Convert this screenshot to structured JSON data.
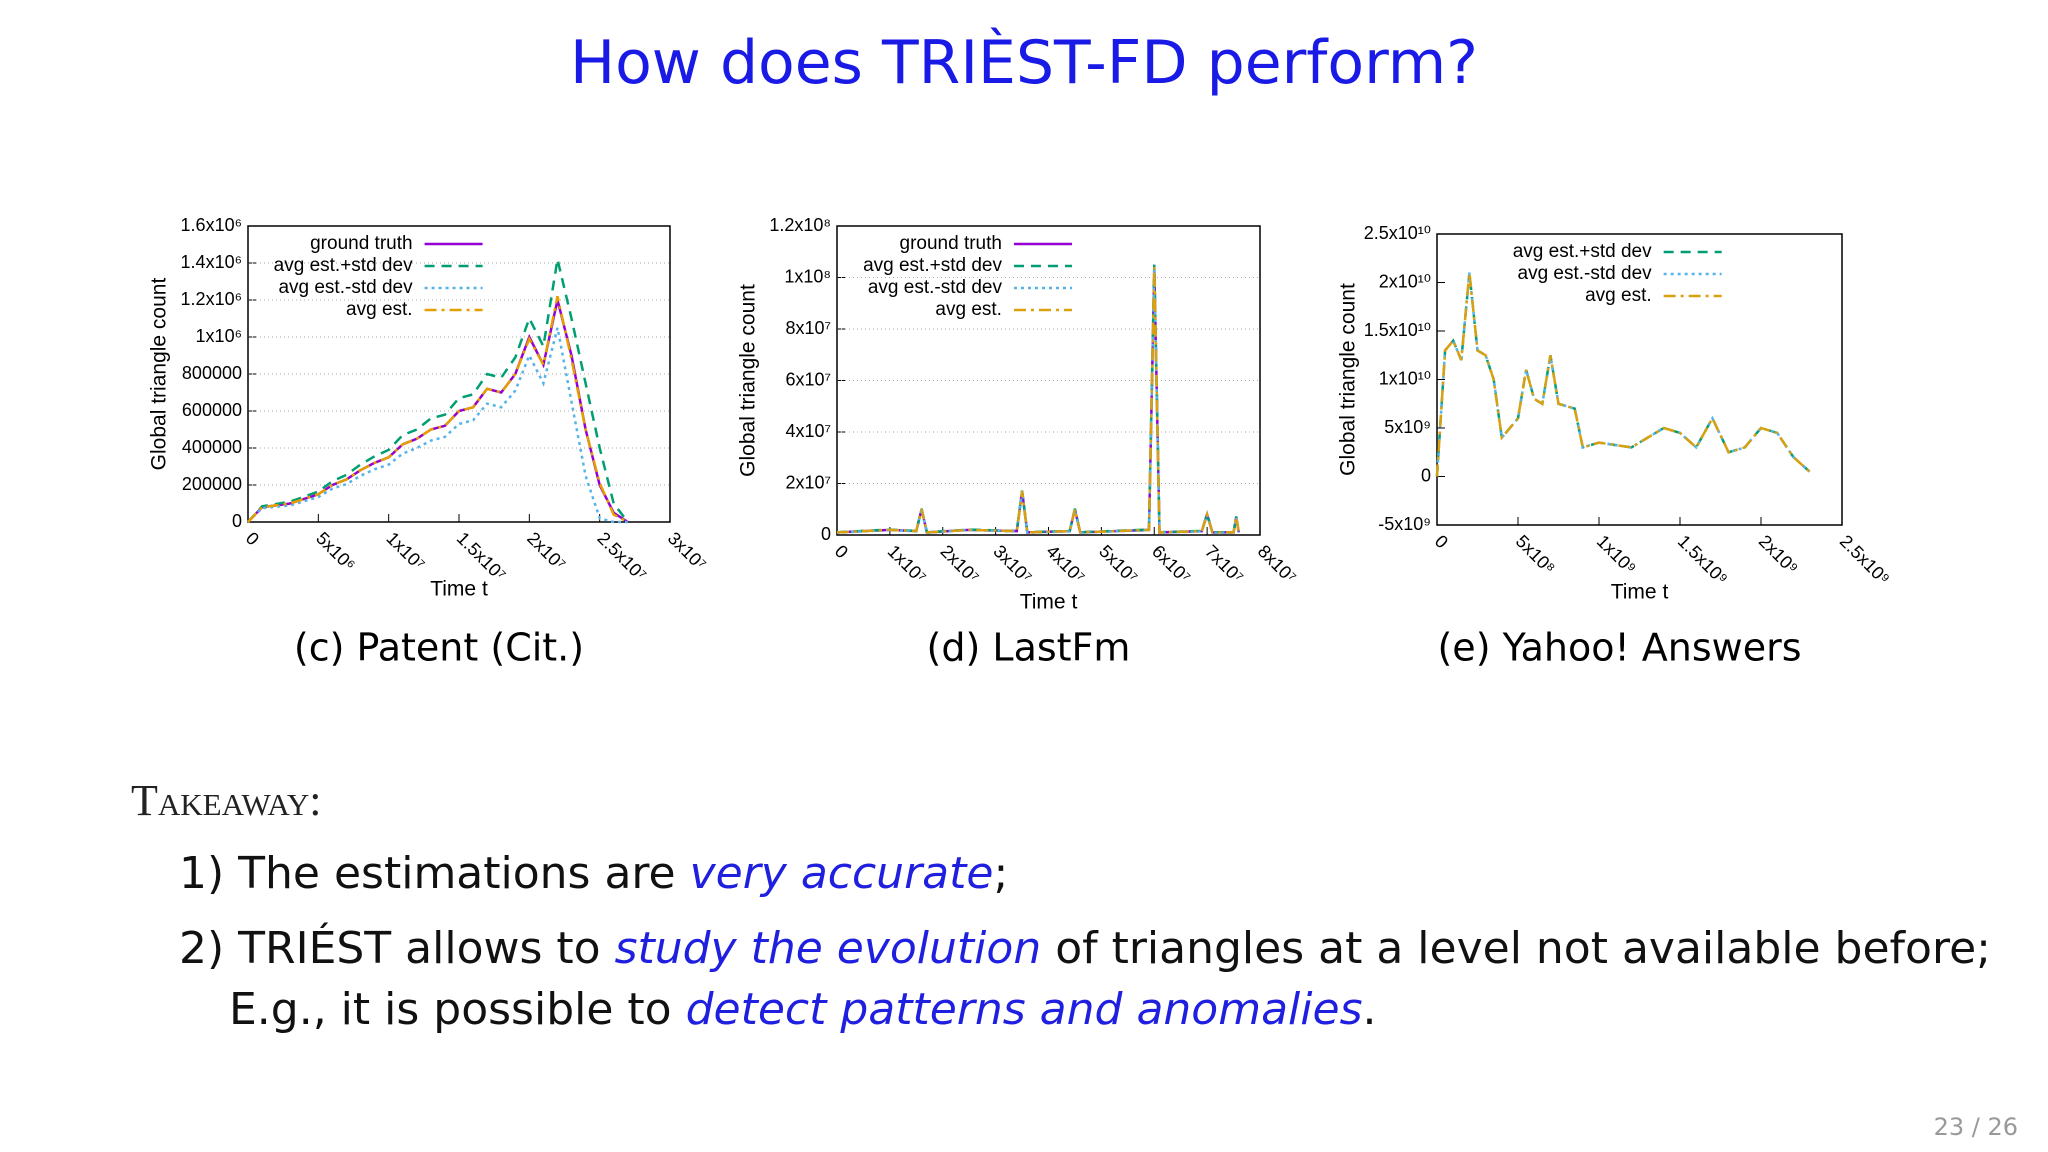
{
  "slide_title": "How does TRIÈST-FD perform?",
  "chart_data": [
    {
      "type": "line",
      "caption": "(c) Patent (Cit.)",
      "ylabel": "Global triangle count",
      "xlabel": "Time t",
      "grid": true,
      "legend": "upper left",
      "xlim": [
        0,
        30000000.0
      ],
      "ylim": [
        0,
        1600000
      ],
      "xticks": [
        0,
        {
          "value": 5000000.0,
          "label": "5x10⁶"
        },
        {
          "value": 10000000.0,
          "label": "1x10⁷"
        },
        {
          "value": 15000000.0,
          "label": "1.5x10⁷"
        },
        {
          "value": 20000000.0,
          "label": "2x10⁷"
        },
        {
          "value": 25000000.0,
          "label": "2.5x10⁷"
        },
        {
          "value": 30000000.0,
          "label": "3x10⁷"
        }
      ],
      "yticks": [
        0,
        200000,
        400000,
        600000,
        800000,
        {
          "value": 1000000,
          "label": "1x10⁶"
        },
        {
          "value": 1200000,
          "label": "1.2x10⁶"
        },
        {
          "value": 1400000,
          "label": "1.4x10⁶"
        },
        {
          "value": 1600000,
          "label": "1.6x10⁶"
        }
      ],
      "x": [
        0,
        1000000.0,
        3000000.0,
        5000000.0,
        6000000.0,
        7000000.0,
        8000000.0,
        9000000.0,
        10000000.0,
        11000000.0,
        12000000.0,
        13000000.0,
        14000000.0,
        15000000.0,
        16000000.0,
        17000000.0,
        18000000.0,
        19000000.0,
        20000000.0,
        21000000.0,
        22000000.0,
        23000000.0,
        24000000.0,
        25000000.0,
        26000000.0,
        27000000.0
      ],
      "series": [
        {
          "name": "ground truth",
          "color": "#9400d3",
          "dash": "solid",
          "values": [
            0,
            80000,
            100000,
            150000,
            200000,
            230000,
            280000,
            320000,
            350000,
            420000,
            450000,
            500000,
            520000,
            600000,
            620000,
            720000,
            700000,
            800000,
            1000000,
            850000,
            1200000,
            900000,
            500000,
            200000,
            50000,
            0
          ]
        },
        {
          "name": "avg est.+std dev",
          "color": "#009e73",
          "dash": "dashed",
          "values": [
            0,
            85000,
            110000,
            165000,
            220000,
            255000,
            310000,
            355000,
            390000,
            470000,
            500000,
            560000,
            580000,
            670000,
            690000,
            800000,
            780000,
            890000,
            1100000,
            950000,
            1420000,
            1100000,
            750000,
            400000,
            100000,
            0
          ]
        },
        {
          "name": "avg est.-std dev",
          "color": "#56b4e9",
          "dash": "dotted",
          "values": [
            0,
            75000,
            90000,
            135000,
            180000,
            205000,
            250000,
            285000,
            310000,
            370000,
            400000,
            440000,
            460000,
            530000,
            550000,
            640000,
            620000,
            710000,
            900000,
            750000,
            1050000,
            650000,
            250000,
            20000,
            0,
            0
          ]
        },
        {
          "name": "avg est.",
          "color": "#e69f00",
          "dash": "dashdot",
          "values": [
            0,
            80000,
            100000,
            150000,
            200000,
            230000,
            280000,
            320000,
            350000,
            420000,
            450000,
            500000,
            520000,
            600000,
            620000,
            720000,
            700000,
            800000,
            990000,
            850000,
            1220000,
            880000,
            500000,
            210000,
            40000,
            0
          ]
        }
      ]
    },
    {
      "type": "line",
      "caption": "(d) LastFm",
      "ylabel": "Global triangle count",
      "xlabel": "Time t",
      "grid": true,
      "legend": "upper left",
      "xlim": [
        0,
        80000000.0
      ],
      "ylim": [
        0,
        120000000.0
      ],
      "xticks": [
        0,
        {
          "value": 10000000.0,
          "label": "1x10⁷"
        },
        {
          "value": 20000000.0,
          "label": "2x10⁷"
        },
        {
          "value": 30000000.0,
          "label": "3x10⁷"
        },
        {
          "value": 40000000.0,
          "label": "4x10⁷"
        },
        {
          "value": 50000000.0,
          "label": "5x10⁷"
        },
        {
          "value": 60000000.0,
          "label": "6x10⁷"
        },
        {
          "value": 70000000.0,
          "label": "7x10⁷"
        },
        {
          "value": 80000000.0,
          "label": "8x10⁷"
        }
      ],
      "yticks": [
        0,
        {
          "value": 20000000.0,
          "label": "2x10⁷"
        },
        {
          "value": 40000000.0,
          "label": "4x10⁷"
        },
        {
          "value": 60000000.0,
          "label": "6x10⁷"
        },
        {
          "value": 80000000.0,
          "label": "8x10⁷"
        },
        {
          "value": 100000000.0,
          "label": "1x10⁸"
        },
        {
          "value": 120000000.0,
          "label": "1.2x10⁸"
        }
      ],
      "x": [
        0,
        10000000.0,
        15000000.0,
        16000000.0,
        17000000.0,
        25000000.0,
        34000000.0,
        35000000.0,
        36000000.0,
        44000000.0,
        45000000.0,
        46000000.0,
        59000000.0,
        60000000.0,
        61000000.0,
        69000000.0,
        70000000.0,
        71000000.0,
        75000000.0,
        75500000.0,
        76000000.0
      ],
      "series": [
        {
          "name": "ground truth",
          "color": "#9400d3",
          "dash": "solid",
          "values": [
            1000000.0,
            2000000.0,
            1500000.0,
            10000000.0,
            1000000.0,
            2000000.0,
            1500000.0,
            17000000.0,
            1000000.0,
            1500000.0,
            10000000.0,
            1000000.0,
            2000000.0,
            104000000.0,
            1000000.0,
            1500000.0,
            8000000.0,
            1000000.0,
            1000000.0,
            7000000.0,
            1000000.0
          ]
        },
        {
          "name": "avg est.+std dev",
          "color": "#009e73",
          "dash": "dashed",
          "values": [
            1100000.0,
            2100000.0,
            1600000.0,
            10200000.0,
            1100000.0,
            2100000.0,
            1600000.0,
            17200000.0,
            1100000.0,
            1600000.0,
            10200000.0,
            1100000.0,
            2100000.0,
            105000000.0,
            1100000.0,
            1600000.0,
            8200000.0,
            1100000.0,
            1100000.0,
            7200000.0,
            1100000.0
          ]
        },
        {
          "name": "avg est.-std dev",
          "color": "#56b4e9",
          "dash": "dotted",
          "values": [
            900000.0,
            1900000.0,
            1400000.0,
            9800000.0,
            900000.0,
            1900000.0,
            1400000.0,
            16800000.0,
            900000.0,
            1400000.0,
            9800000.0,
            900000.0,
            1900000.0,
            103000000.0,
            900000.0,
            1400000.0,
            7800000.0,
            900000.0,
            900000.0,
            6800000.0,
            900000.0
          ]
        },
        {
          "name": "avg est.",
          "color": "#d9a010",
          "dash": "dashdot",
          "values": [
            1000000.0,
            2000000.0,
            1500000.0,
            10000000.0,
            1000000.0,
            2000000.0,
            1500000.0,
            17000000.0,
            1000000.0,
            1500000.0,
            10000000.0,
            1000000.0,
            2000000.0,
            104000000.0,
            1000000.0,
            1500000.0,
            8000000.0,
            1000000.0,
            1000000.0,
            7000000.0,
            1000000.0
          ]
        }
      ]
    },
    {
      "type": "line",
      "caption": "(e) Yahoo! Answers",
      "ylabel": "Global triangle count",
      "xlabel": "Time t",
      "grid": false,
      "legend": "upper center",
      "xlim": [
        0,
        2500000000.0
      ],
      "ylim": [
        -5000000000.0,
        25000000000.0
      ],
      "xticks": [
        0,
        {
          "value": 500000000.0,
          "label": "5x10⁸"
        },
        {
          "value": 1000000000.0,
          "label": "1x10⁹"
        },
        {
          "value": 1500000000.0,
          "label": "1.5x10⁹"
        },
        {
          "value": 2000000000.0,
          "label": "2x10⁹"
        },
        {
          "value": 2500000000.0,
          "label": "2.5x10⁹"
        }
      ],
      "yticks": [
        {
          "value": -5000000000.0,
          "label": "-5x10⁹"
        },
        0,
        {
          "value": 5000000000.0,
          "label": "5x10⁹"
        },
        {
          "value": 10000000000.0,
          "label": "1x10¹⁰"
        },
        {
          "value": 15000000000.0,
          "label": "1.5x10¹⁰"
        },
        {
          "value": 20000000000.0,
          "label": "2x10¹⁰"
        },
        {
          "value": 25000000000.0,
          "label": "2.5x10¹⁰"
        }
      ],
      "x": [
        0,
        50000000.0,
        100000000.0,
        150000000.0,
        200000000.0,
        250000000.0,
        300000000.0,
        350000000.0,
        400000000.0,
        500000000.0,
        550000000.0,
        600000000.0,
        650000000.0,
        700000000.0,
        750000000.0,
        850000000.0,
        900000000.0,
        1000000000.0,
        1200000000.0,
        1400000000.0,
        1500000000.0,
        1600000000.0,
        1700000000.0,
        1800000000.0,
        1900000000.0,
        2000000000.0,
        2100000000.0,
        2200000000.0,
        2300000000.0
      ],
      "series": [
        {
          "name": "avg est.+std dev",
          "color": "#009e73",
          "dash": "dashed",
          "values": [
            0,
            13000000000.0,
            14000000000.0,
            12000000000.0,
            21000000000.0,
            13000000000.0,
            12500000000.0,
            10000000000.0,
            4000000000.0,
            6000000000.0,
            11000000000.0,
            8000000000.0,
            7500000000.0,
            12500000000.0,
            7500000000.0,
            7000000000.0,
            3000000000.0,
            3500000000.0,
            3000000000.0,
            5000000000.0,
            4500000000.0,
            3000000000.0,
            6000000000.0,
            2500000000.0,
            3000000000.0,
            5000000000.0,
            4500000000.0,
            2000000000.0,
            500000000.0
          ]
        },
        {
          "name": "avg est.-std dev",
          "color": "#56b4e9",
          "dash": "dotted",
          "values": [
            0,
            13000000000.0,
            14000000000.0,
            12000000000.0,
            21000000000.0,
            13000000000.0,
            12500000000.0,
            10000000000.0,
            4000000000.0,
            6000000000.0,
            11000000000.0,
            8000000000.0,
            7500000000.0,
            12500000000.0,
            7500000000.0,
            7000000000.0,
            3000000000.0,
            3500000000.0,
            3000000000.0,
            5000000000.0,
            4500000000.0,
            3000000000.0,
            6000000000.0,
            2500000000.0,
            3000000000.0,
            5000000000.0,
            4500000000.0,
            2000000000.0,
            500000000.0
          ]
        },
        {
          "name": "avg est.",
          "color": "#d9a010",
          "dash": "dashdot",
          "values": [
            0,
            13000000000.0,
            14000000000.0,
            12000000000.0,
            21000000000.0,
            13000000000.0,
            12500000000.0,
            10000000000.0,
            4000000000.0,
            6000000000.0,
            11000000000.0,
            8000000000.0,
            7500000000.0,
            12500000000.0,
            7500000000.0,
            7000000000.0,
            3000000000.0,
            3500000000.0,
            3000000000.0,
            5000000000.0,
            4500000000.0,
            3000000000.0,
            6000000000.0,
            2500000000.0,
            3000000000.0,
            5000000000.0,
            4500000000.0,
            2000000000.0,
            500000000.0
          ]
        }
      ]
    }
  ],
  "takeaway": {
    "heading": "Takeaway:",
    "lines": [
      [
        "1) The estimations are ",
        "very accurate",
        ";"
      ],
      [
        "2) TRIÉST allows to ",
        "study the evolution",
        " of triangles at a level not available before;"
      ],
      [
        "E.g., it is possible to ",
        "detect patterns and anomalies",
        "."
      ]
    ]
  },
  "page_number": "23 / 26"
}
